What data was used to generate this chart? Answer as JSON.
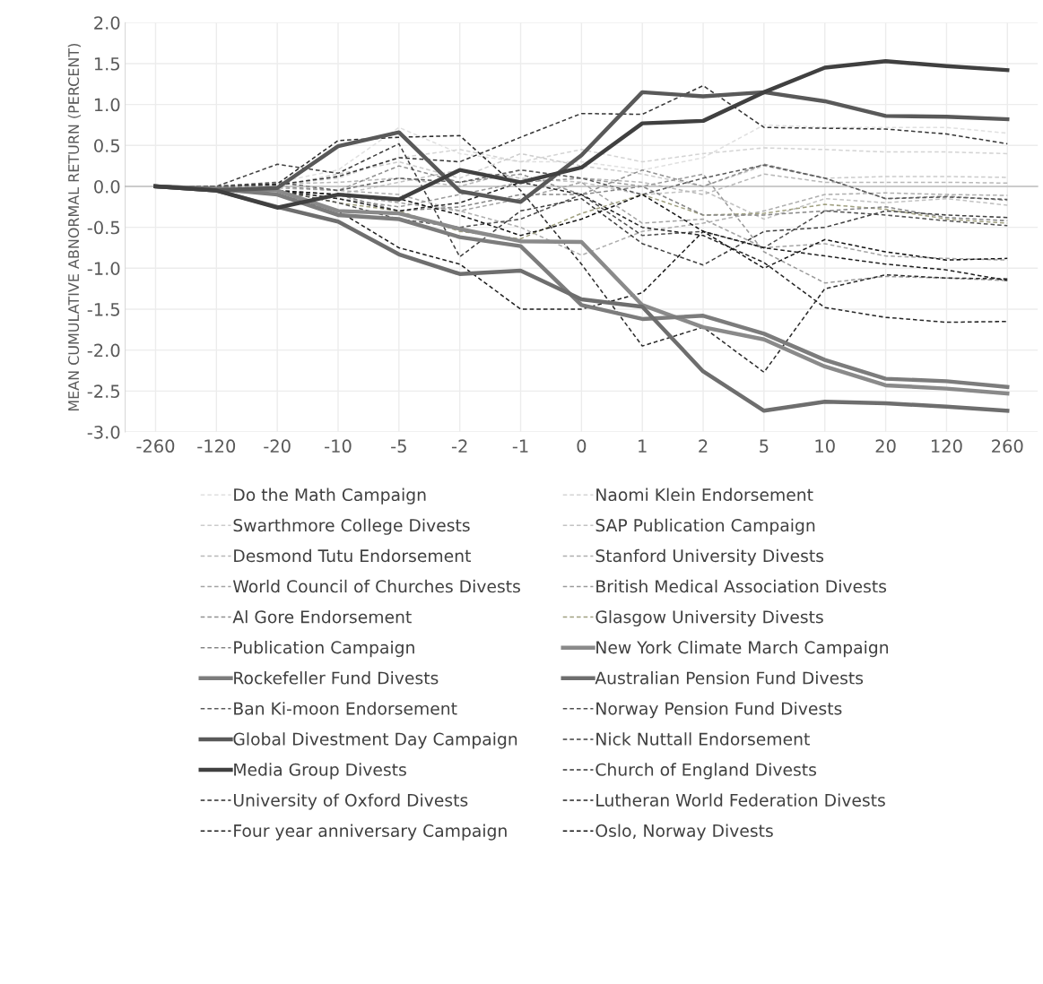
{
  "chart_data": {
    "type": "line",
    "ylabel": "MEAN CUMULATIVE ABNORMAL RETURN (PERCENT)",
    "categories": [
      "-260",
      "-120",
      "-20",
      "-10",
      "-5",
      "-2",
      "-1",
      "0",
      "1",
      "2",
      "5",
      "10",
      "20",
      "120",
      "260"
    ],
    "ylim": [
      -3.0,
      2.0
    ],
    "yticks": [
      {
        "value": -3.0,
        "label": "-3.0"
      },
      {
        "value": -2.5,
        "label": "-2.5"
      },
      {
        "value": -2.0,
        "label": "-2.0"
      },
      {
        "value": -1.5,
        "label": "-1.5"
      },
      {
        "value": -1.0,
        "label": "-1.0"
      },
      {
        "value": -0.5,
        "label": "-0.5"
      },
      {
        "value": 0.0,
        "label": "0.0"
      },
      {
        "value": 0.5,
        "label": "0.5"
      },
      {
        "value": 1.0,
        "label": "1.0"
      },
      {
        "value": 1.5,
        "label": "1.5"
      },
      {
        "value": 2.0,
        "label": "2.0"
      }
    ],
    "grid": true,
    "legend": "bottom",
    "marker": "none",
    "series": [
      {
        "name": "Do the Math Campaign",
        "color": "#e0e0e0",
        "line_style": "dashed",
        "values": [
          0,
          0,
          0.05,
          0.2,
          0.72,
          0.4,
          0.3,
          0.3,
          0.2,
          0.35,
          0.75,
          0.72,
          0.72,
          0.72,
          0.65
        ]
      },
      {
        "name": "Naomi Klein Endorsement",
        "color": "#d4d4d4",
        "line_style": "dashed",
        "values": [
          0,
          0,
          0.02,
          0.1,
          0.35,
          0.45,
          0.3,
          0.45,
          0.3,
          0.4,
          0.47,
          0.45,
          0.42,
          0.42,
          0.4
        ]
      },
      {
        "name": "Swarthmore College Divests",
        "color": "#cccccc",
        "line_style": "dashed",
        "values": [
          0,
          0,
          0.0,
          0.15,
          0.3,
          0.1,
          0.4,
          0.25,
          0.15,
          0.0,
          0.25,
          0.1,
          0.12,
          0.12,
          0.11
        ]
      },
      {
        "name": "SAP Publication Campaign",
        "color": "#c2c2c2",
        "line_style": "dashed",
        "values": [
          0,
          0,
          -0.05,
          -0.1,
          0.05,
          0.2,
          0.1,
          0.05,
          -0.1,
          -0.05,
          -0.4,
          -0.15,
          -0.2,
          -0.15,
          -0.23
        ]
      },
      {
        "name": "Desmond Tutu Endorsement",
        "color": "#b8b8b8",
        "line_style": "dashed",
        "values": [
          0,
          0,
          0.03,
          0.05,
          0.1,
          0.0,
          0.2,
          0.1,
          0.05,
          -0.1,
          0.15,
          0.05,
          0.05,
          0.05,
          0.04
        ]
      },
      {
        "name": "Stanford University Divests",
        "color": "#aeaeae",
        "line_style": "dashed",
        "values": [
          0,
          0,
          -0.02,
          -0.05,
          -0.1,
          -0.3,
          -0.5,
          -0.84,
          -0.55,
          -0.45,
          -0.3,
          -0.1,
          -0.08,
          -0.1,
          -0.11
        ]
      },
      {
        "name": "World Council of Churches Divests",
        "color": "#a4a4a4",
        "line_style": "dashed",
        "values": [
          0,
          0,
          -0.05,
          -0.1,
          -0.2,
          -0.3,
          -0.15,
          0.05,
          -0.45,
          -0.4,
          -0.75,
          -0.7,
          -0.85,
          -0.88,
          -0.9
        ]
      },
      {
        "name": "British Medical Association Divests",
        "color": "#9a9a9a",
        "line_style": "dashed",
        "values": [
          0,
          0,
          -0.05,
          -0.15,
          -0.25,
          -0.1,
          0.05,
          0.1,
          0.0,
          0.15,
          -0.8,
          -1.18,
          -1.1,
          -1.12,
          -1.15
        ]
      },
      {
        "name": "Al Gore Endorsement",
        "color": "#909090",
        "line_style": "dashed",
        "values": [
          0,
          0,
          0.0,
          -0.05,
          0.25,
          0.05,
          0.15,
          -0.1,
          0.2,
          0.0,
          0.27,
          0.1,
          -0.15,
          -0.12,
          -0.17
        ]
      },
      {
        "name": "Glasgow University Divests",
        "color": "#a0a080",
        "line_style": "dashed",
        "values": [
          0,
          0,
          -0.05,
          -0.2,
          -0.3,
          -0.55,
          -0.64,
          -0.33,
          -0.1,
          -0.35,
          -0.33,
          -0.22,
          -0.28,
          -0.4,
          -0.45
        ]
      },
      {
        "name": "Publication Campaign",
        "color": "#868686",
        "line_style": "dashed",
        "values": [
          0,
          0,
          -0.05,
          -0.1,
          -0.3,
          -0.25,
          -0.1,
          -0.1,
          0.0,
          -0.35,
          -0.35,
          -0.3,
          -0.25,
          -0.38,
          -0.42
        ]
      },
      {
        "name": "New York Climate March Campaign",
        "color": "#8a8a8a",
        "line_style": "solid",
        "values": [
          0,
          -0.03,
          -0.05,
          -0.3,
          -0.33,
          -0.52,
          -0.67,
          -0.68,
          -1.45,
          -1.72,
          -1.87,
          -2.2,
          -2.43,
          -2.47,
          -2.53
        ]
      },
      {
        "name": "Rockefeller Fund Divests",
        "color": "#7c7c7c",
        "line_style": "solid",
        "values": [
          0,
          -0.03,
          -0.1,
          -0.35,
          -0.4,
          -0.62,
          -0.73,
          -1.45,
          -1.62,
          -1.58,
          -1.8,
          -2.12,
          -2.35,
          -2.38,
          -2.45
        ]
      },
      {
        "name": "Australian Pension Fund Divests",
        "color": "#6e6e6e",
        "line_style": "solid",
        "values": [
          0,
          -0.05,
          -0.25,
          -0.43,
          -0.83,
          -1.07,
          -1.03,
          -1.38,
          -1.47,
          -2.26,
          -2.74,
          -2.63,
          -2.65,
          -2.69,
          -2.74
        ]
      },
      {
        "name": "Ban Ki-moon Endorsement",
        "color": "#5a5a5a",
        "line_style": "dashed",
        "values": [
          0,
          0,
          0.05,
          -0.05,
          0.1,
          0.05,
          0.2,
          0.1,
          -0.1,
          0.1,
          0.26,
          0.1,
          -0.15,
          -0.13,
          -0.16
        ]
      },
      {
        "name": "Norway Pension Fund Divests",
        "color": "#505050",
        "line_style": "dashed",
        "values": [
          0,
          0,
          -0.05,
          -0.2,
          -0.4,
          -0.5,
          -0.4,
          -0.1,
          -0.6,
          -0.55,
          -0.75,
          -0.3,
          -0.35,
          -0.42,
          -0.48
        ]
      },
      {
        "name": "Global Divestment Day Campaign",
        "color": "#595959",
        "line_style": "solid",
        "values": [
          0,
          -0.05,
          -0.02,
          0.49,
          0.66,
          -0.06,
          -0.19,
          0.38,
          1.15,
          1.1,
          1.15,
          1.04,
          0.86,
          0.85,
          0.82
        ]
      },
      {
        "name": "Nick Nuttall Endorsement",
        "color": "#404040",
        "line_style": "dashed",
        "values": [
          0,
          0,
          0.27,
          0.16,
          0.52,
          -0.86,
          -0.3,
          -0.15,
          -0.7,
          -0.96,
          -0.55,
          -0.5,
          -0.3,
          -0.35,
          -0.38
        ]
      },
      {
        "name": "Media Group Divests",
        "color": "#404040",
        "line_style": "solid",
        "values": [
          0,
          -0.05,
          -0.26,
          -0.1,
          -0.16,
          0.2,
          0.05,
          0.23,
          0.77,
          0.8,
          1.15,
          1.45,
          1.53,
          1.47,
          1.42
        ]
      },
      {
        "name": "Church of England Divests",
        "color": "#363636",
        "line_style": "dashed",
        "values": [
          0,
          0,
          0.02,
          0.12,
          0.35,
          0.3,
          0.6,
          0.89,
          0.88,
          1.23,
          0.72,
          0.71,
          0.7,
          0.64,
          0.52
        ]
      },
      {
        "name": "University of Oxford Divests",
        "color": "#2c2c2c",
        "line_style": "dashed",
        "values": [
          0,
          0,
          0.03,
          0.56,
          0.6,
          0.62,
          -0.05,
          -0.95,
          -1.95,
          -1.72,
          -2.27,
          -1.25,
          -1.08,
          -1.12,
          -1.13
        ]
      },
      {
        "name": "Lutheran World Federation Divests",
        "color": "#262626",
        "line_style": "dashed",
        "values": [
          0,
          0,
          -0.05,
          -0.15,
          -0.3,
          -0.2,
          0.05,
          -0.1,
          -0.5,
          -0.6,
          -0.93,
          -1.48,
          -1.6,
          -1.66,
          -1.65
        ]
      },
      {
        "name": "Four year anniversary Campaign",
        "color": "#1e1e1e",
        "line_style": "dashed",
        "values": [
          0,
          0,
          -0.1,
          -0.3,
          -0.75,
          -0.95,
          -1.5,
          -1.5,
          -1.3,
          -0.55,
          -0.75,
          -0.85,
          -0.95,
          -1.02,
          -1.15
        ]
      },
      {
        "name": "Oslo, Norway Divests",
        "color": "#141414",
        "line_style": "dashed",
        "values": [
          0,
          0,
          -0.05,
          -0.1,
          -0.15,
          -0.35,
          -0.6,
          -0.4,
          -0.1,
          -0.55,
          -1.0,
          -0.65,
          -0.8,
          -0.9,
          -0.88
        ]
      }
    ]
  }
}
